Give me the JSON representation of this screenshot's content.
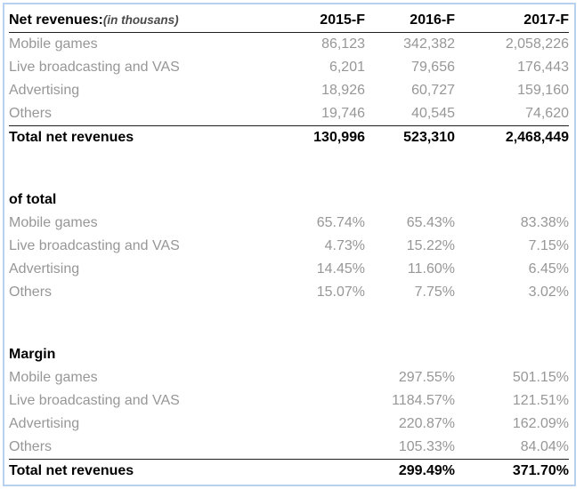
{
  "table": {
    "columns": [
      "2015-F",
      "2016-F",
      "2017-F"
    ],
    "sections": [
      {
        "title": "Net revenues:",
        "note": "(in thousans)",
        "rows": [
          {
            "label": "Mobile games",
            "values": [
              "86,123",
              "342,382",
              "2,058,226"
            ]
          },
          {
            "label": "Live broadcasting and VAS",
            "values": [
              "6,201",
              "79,656",
              "176,443"
            ]
          },
          {
            "label": "Advertising",
            "values": [
              "18,926",
              "60,727",
              "159,160"
            ]
          },
          {
            "label": "Others",
            "values": [
              "19,746",
              "40,545",
              "74,620"
            ]
          }
        ],
        "total": {
          "label": "Total net revenues",
          "values": [
            "130,996",
            "523,310",
            "2,468,449"
          ]
        }
      },
      {
        "title": "of total",
        "rows": [
          {
            "label": "Mobile games",
            "values": [
              "65.74%",
              "65.43%",
              "83.38%"
            ]
          },
          {
            "label": "Live broadcasting and VAS",
            "values": [
              "4.73%",
              "15.22%",
              "7.15%"
            ]
          },
          {
            "label": "Advertising",
            "values": [
              "14.45%",
              "11.60%",
              "6.45%"
            ]
          },
          {
            "label": "Others",
            "values": [
              "15.07%",
              "7.75%",
              "3.02%"
            ]
          }
        ]
      },
      {
        "title": "Margin",
        "rows": [
          {
            "label": "Mobile games",
            "values": [
              "",
              "297.55%",
              "501.15%"
            ]
          },
          {
            "label": "Live broadcasting and VAS",
            "values": [
              "",
              "1184.57%",
              "121.51%"
            ]
          },
          {
            "label": "Advertising",
            "values": [
              "",
              "220.87%",
              "162.09%"
            ]
          },
          {
            "label": "Others",
            "values": [
              "",
              "105.33%",
              "84.04%"
            ]
          }
        ],
        "total": {
          "label": "Total net revenues",
          "values": [
            "",
            "299.49%",
            "371.70%"
          ]
        }
      }
    ]
  },
  "colors": {
    "frame_border": "#b7d1ee",
    "text_primary": "#000000",
    "text_muted": "#979797",
    "rule_line": "#1f1f1f"
  },
  "chart_data": {
    "type": "table",
    "title": "Net revenues:(in thousans)",
    "columns": [
      "",
      "2015-F",
      "2016-F",
      "2017-F"
    ],
    "rows": [
      [
        "Net revenues:(in thousans)",
        "2015-F",
        "2016-F",
        "2017-F"
      ],
      [
        "Mobile games",
        "86,123",
        "342,382",
        "2,058,226"
      ],
      [
        "Live broadcasting and VAS",
        "6,201",
        "79,656",
        "176,443"
      ],
      [
        "Advertising",
        "18,926",
        "60,727",
        "159,160"
      ],
      [
        "Others",
        "19,746",
        "40,545",
        "74,620"
      ],
      [
        "Total net revenues",
        "130,996",
        "523,310",
        "2,468,449"
      ],
      [
        "of total",
        "",
        "",
        ""
      ],
      [
        "Mobile games",
        "65.74%",
        "65.43%",
        "83.38%"
      ],
      [
        "Live broadcasting and VAS",
        "4.73%",
        "15.22%",
        "7.15%"
      ],
      [
        "Advertising",
        "14.45%",
        "11.60%",
        "6.45%"
      ],
      [
        "Others",
        "15.07%",
        "7.75%",
        "3.02%"
      ],
      [
        "Margin",
        "",
        "",
        ""
      ],
      [
        "Mobile games",
        "",
        "297.55%",
        "501.15%"
      ],
      [
        "Live broadcasting and VAS",
        "",
        "1184.57%",
        "121.51%"
      ],
      [
        "Advertising",
        "",
        "220.87%",
        "162.09%"
      ],
      [
        "Others",
        "",
        "105.33%",
        "84.04%"
      ],
      [
        "Total net revenues",
        "",
        "299.49%",
        "371.70%"
      ]
    ],
    "net_revenues_thousands": {
      "categories": [
        "2015-F",
        "2016-F",
        "2017-F"
      ],
      "series": [
        {
          "name": "Mobile games",
          "values": [
            86123,
            342382,
            2058226
          ]
        },
        {
          "name": "Live broadcasting and VAS",
          "values": [
            6201,
            79656,
            176443
          ]
        },
        {
          "name": "Advertising",
          "values": [
            18926,
            60727,
            159160
          ]
        },
        {
          "name": "Others",
          "values": [
            19746,
            40545,
            74620
          ]
        },
        {
          "name": "Total net revenues",
          "values": [
            130996,
            523310,
            2468449
          ]
        }
      ]
    },
    "of_total_percent": {
      "categories": [
        "2015-F",
        "2016-F",
        "2017-F"
      ],
      "series": [
        {
          "name": "Mobile games",
          "values": [
            65.74,
            65.43,
            83.38
          ]
        },
        {
          "name": "Live broadcasting and VAS",
          "values": [
            4.73,
            15.22,
            7.15
          ]
        },
        {
          "name": "Advertising",
          "values": [
            14.45,
            11.6,
            6.45
          ]
        },
        {
          "name": "Others",
          "values": [
            15.07,
            7.75,
            3.02
          ]
        }
      ]
    },
    "margin_percent": {
      "categories": [
        "2016-F",
        "2017-F"
      ],
      "series": [
        {
          "name": "Mobile games",
          "values": [
            297.55,
            501.15
          ]
        },
        {
          "name": "Live broadcasting and VAS",
          "values": [
            1184.57,
            121.51
          ]
        },
        {
          "name": "Advertising",
          "values": [
            220.87,
            162.09
          ]
        },
        {
          "name": "Others",
          "values": [
            105.33,
            84.04
          ]
        },
        {
          "name": "Total net revenues",
          "values": [
            299.49,
            371.7
          ]
        }
      ]
    }
  }
}
